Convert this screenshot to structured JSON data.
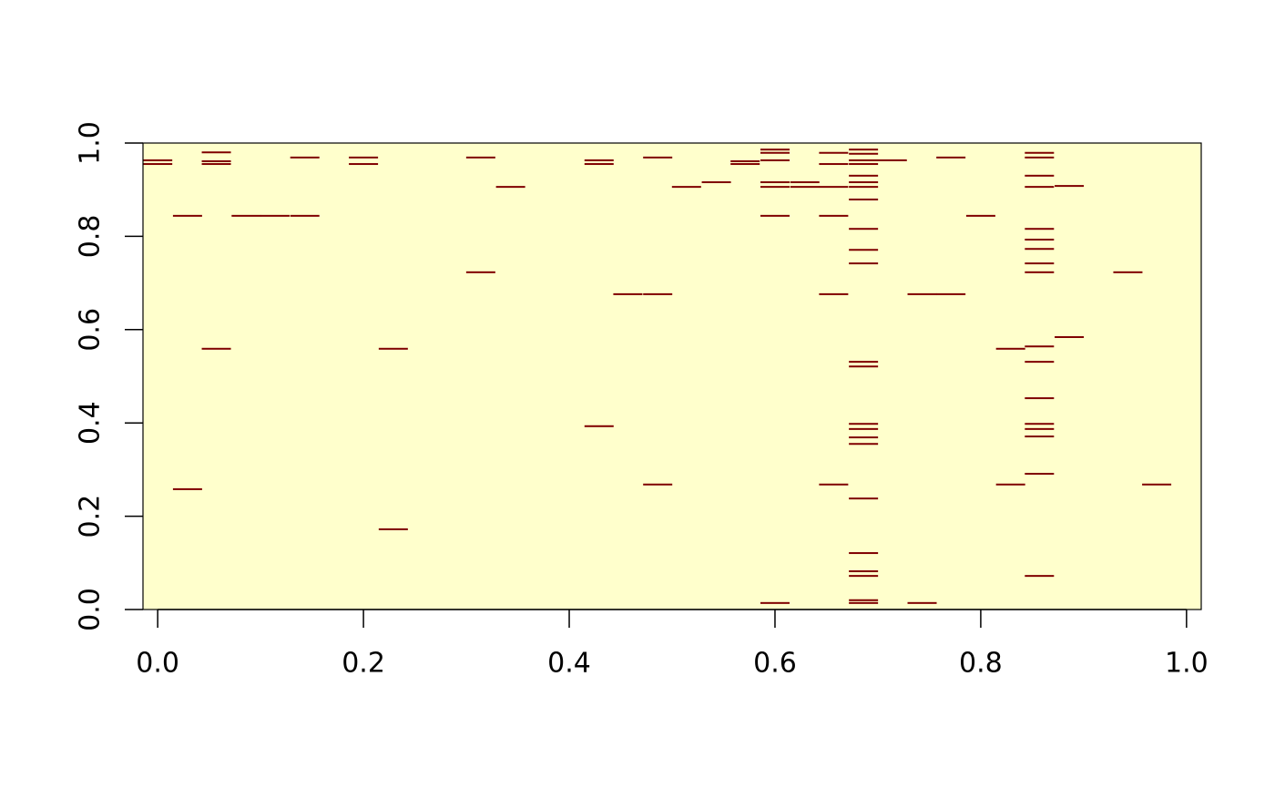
{
  "chart_data": {
    "type": "heatmap",
    "colors": [
      "#FFFFCC",
      "#7F0000"
    ],
    "xlim": [
      -0.0143,
      1.0143
    ],
    "ylim": [
      0,
      1
    ],
    "xticks": [
      {
        "value": 0,
        "label": "0.0"
      },
      {
        "value": 0.2,
        "label": "0.2"
      },
      {
        "value": 0.4,
        "label": "0.4"
      },
      {
        "value": 0.6,
        "label": "0.6"
      },
      {
        "value": 0.8,
        "label": "0.8"
      },
      {
        "value": 1,
        "label": "1.0"
      }
    ],
    "yticks": [
      {
        "value": 0,
        "label": "0.0"
      },
      {
        "value": 0.2,
        "label": "0.2"
      },
      {
        "value": 0.4,
        "label": "0.4"
      },
      {
        "value": 0.6,
        "label": "0.6"
      },
      {
        "value": 0.8,
        "label": "0.8"
      },
      {
        "value": 1,
        "label": "1.0"
      }
    ],
    "x": [
      0,
      0,
      0.029,
      0.029,
      0.057,
      0.057,
      0.057,
      0.057,
      0.086,
      0.114,
      0.143,
      0.143,
      0.2,
      0.2,
      0.229,
      0.229,
      0.314,
      0.314,
      0.343,
      0.429,
      0.429,
      0.429,
      0.457,
      0.486,
      0.486,
      0.486,
      0.514,
      0.543,
      0.571,
      0.571,
      0.6,
      0.6,
      0.6,
      0.6,
      0.6,
      0.6,
      0.6,
      0.629,
      0.629,
      0.657,
      0.657,
      0.657,
      0.657,
      0.657,
      0.657,
      0.686,
      0.686,
      0.686,
      0.686,
      0.686,
      0.686,
      0.686,
      0.686,
      0.686,
      0.686,
      0.686,
      0.686,
      0.686,
      0.686,
      0.686,
      0.686,
      0.686,
      0.686,
      0.686,
      0.686,
      0.686,
      0.686,
      0.686,
      0.714,
      0.743,
      0.743,
      0.771,
      0.771,
      0.8,
      0.829,
      0.829,
      0.857,
      0.857,
      0.857,
      0.857,
      0.857,
      0.857,
      0.857,
      0.857,
      0.857,
      0.857,
      0.857,
      0.857,
      0.857,
      0.857,
      0.857,
      0.857,
      0.857,
      0.886,
      0.886,
      0.943,
      0.971
    ],
    "y": [
      0.963,
      0.955,
      0.844,
      0.258,
      0.98,
      0.961,
      0.955,
      0.559,
      0.844,
      0.844,
      0.844,
      0.969,
      0.969,
      0.955,
      0.559,
      0.172,
      0.969,
      0.723,
      0.906,
      0.963,
      0.955,
      0.393,
      0.676,
      0.676,
      0.969,
      0.268,
      0.906,
      0.916,
      0.961,
      0.955,
      0.986,
      0.979,
      0.963,
      0.916,
      0.906,
      0.844,
      0.014,
      0.916,
      0.906,
      0.979,
      0.955,
      0.906,
      0.844,
      0.676,
      0.268,
      0.986,
      0.977,
      0.963,
      0.955,
      0.93,
      0.916,
      0.906,
      0.879,
      0.816,
      0.771,
      0.742,
      0.531,
      0.521,
      0.398,
      0.387,
      0.369,
      0.355,
      0.238,
      0.121,
      0.082,
      0.072,
      0.02,
      0.014,
      0.963,
      0.676,
      0.014,
      0.676,
      0.969,
      0.844,
      0.559,
      0.268,
      0.979,
      0.969,
      0.93,
      0.906,
      0.816,
      0.793,
      0.773,
      0.742,
      0.723,
      0.564,
      0.531,
      0.453,
      0.398,
      0.387,
      0.371,
      0.291,
      0.072,
      0.908,
      0.584,
      0.723,
      0.268
    ]
  }
}
